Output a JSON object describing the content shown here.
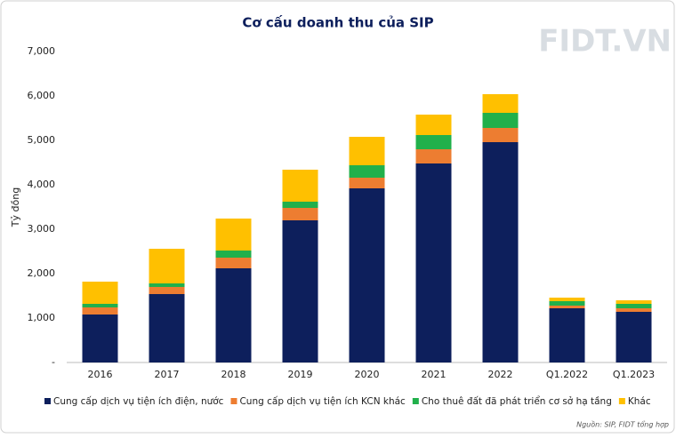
{
  "chart_data": {
    "type": "stacked_bar",
    "title": "Cơ cấu doanh thu của SIP",
    "watermark": "FIDT.VN",
    "y_label": "Tỷ đồng",
    "source": "Nguồn: SIP, FIDT tổng hợp",
    "categories": [
      "2016",
      "2017",
      "2018",
      "2019",
      "2020",
      "2021",
      "2022",
      "Q1.2022",
      "Q1.2023"
    ],
    "series": [
      {
        "name": "Cung cấp dịch vụ tiện ích điện, nước",
        "color": "#0d1f5c",
        "values": [
          1080,
          1540,
          2120,
          3200,
          3920,
          4480,
          4960,
          1220,
          1140
        ]
      },
      {
        "name": "Cung cấp dịch vụ tiện ích KCN khác",
        "color": "#ed7d31",
        "values": [
          160,
          160,
          240,
          280,
          240,
          320,
          320,
          60,
          80
        ]
      },
      {
        "name": "Cho thuê đất đã phát triển cơ sở hạ tầng",
        "color": "#21b04b",
        "values": [
          80,
          80,
          160,
          140,
          280,
          320,
          340,
          100,
          100
        ]
      },
      {
        "name": "Khác",
        "color": "#ffc000",
        "values": [
          500,
          780,
          720,
          720,
          640,
          460,
          420,
          80,
          80
        ]
      }
    ],
    "ylim": [
      0,
      7000
    ],
    "yticks": [
      {
        "value": 0,
        "label": "-"
      },
      {
        "value": 1000,
        "label": "1,000"
      },
      {
        "value": 2000,
        "label": "2,000"
      },
      {
        "value": 3000,
        "label": "3,000"
      },
      {
        "value": 4000,
        "label": "4,000"
      },
      {
        "value": 5000,
        "label": "5,000"
      },
      {
        "value": 6000,
        "label": "6,000"
      },
      {
        "value": 7000,
        "label": "7,000"
      }
    ]
  }
}
